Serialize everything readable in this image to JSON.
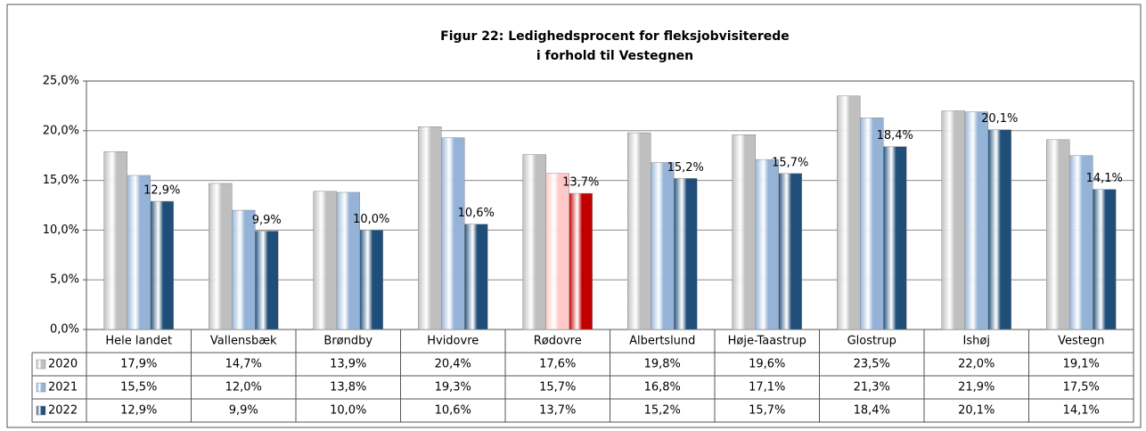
{
  "chart_data": {
    "type": "bar",
    "title_lines": [
      "Figur 22: Ledighedsprocent for fleksjobvisiterede",
      "i forhold til Vestegnen"
    ],
    "categories": [
      "Hele landet",
      "Vallensbæk",
      "Brøndby",
      "Hvidovre",
      "Rødovre",
      "Albertslund",
      "Høje-Taastrup",
      "Glostrup",
      "Ishøj",
      "Vestegn"
    ],
    "series": [
      {
        "name": "2020",
        "color": "#bfbfbf",
        "colors": [
          "#bfbfbf",
          "#bfbfbf",
          "#bfbfbf",
          "#bfbfbf",
          "#bfbfbf",
          "#bfbfbf",
          "#bfbfbf",
          "#bfbfbf",
          "#bfbfbf",
          "#bfbfbf"
        ],
        "values": [
          17.9,
          14.7,
          13.9,
          20.4,
          17.6,
          19.8,
          19.6,
          23.5,
          22.0,
          19.1
        ],
        "value_labels": [
          "17,9%",
          "14,7%",
          "13,9%",
          "20,4%",
          "17,6%",
          "19,8%",
          "19,6%",
          "23,5%",
          "22,0%",
          "19,1%"
        ]
      },
      {
        "name": "2021",
        "color": "#95b3d7",
        "colors": [
          "#95b3d7",
          "#95b3d7",
          "#95b3d7",
          "#95b3d7",
          "#ffc8c8",
          "#95b3d7",
          "#95b3d7",
          "#95b3d7",
          "#95b3d7",
          "#95b3d7"
        ],
        "values": [
          15.5,
          12.0,
          13.8,
          19.3,
          15.7,
          16.8,
          17.1,
          21.3,
          21.9,
          17.5
        ],
        "value_labels": [
          "15,5%",
          "12,0%",
          "13,8%",
          "19,3%",
          "15,7%",
          "16,8%",
          "17,1%",
          "21,3%",
          "21,9%",
          "17,5%"
        ]
      },
      {
        "name": "2022",
        "color": "#1f4e79",
        "colors": [
          "#1f4e79",
          "#1f4e79",
          "#1f4e79",
          "#1f4e79",
          "#c00000",
          "#1f4e79",
          "#1f4e79",
          "#1f4e79",
          "#1f4e79",
          "#1f4e79"
        ],
        "values": [
          12.9,
          9.9,
          10.0,
          10.6,
          13.7,
          15.2,
          15.7,
          18.4,
          20.1,
          14.1
        ],
        "value_labels": [
          "12,9%",
          "9,9%",
          "10,0%",
          "10,6%",
          "13,7%",
          "15,2%",
          "15,7%",
          "18,4%",
          "20,1%",
          "14,1%"
        ],
        "show_labels": true
      }
    ],
    "ylim": [
      0,
      25
    ],
    "yticks": [
      {
        "value": 0,
        "label": "0,0%"
      },
      {
        "value": 5,
        "label": "5,0%"
      },
      {
        "value": 10,
        "label": "10,0%"
      },
      {
        "value": 15,
        "label": "15,0%"
      },
      {
        "value": 20,
        "label": "20,0%"
      },
      {
        "value": 25,
        "label": "25,0%"
      }
    ],
    "grid": true
  }
}
